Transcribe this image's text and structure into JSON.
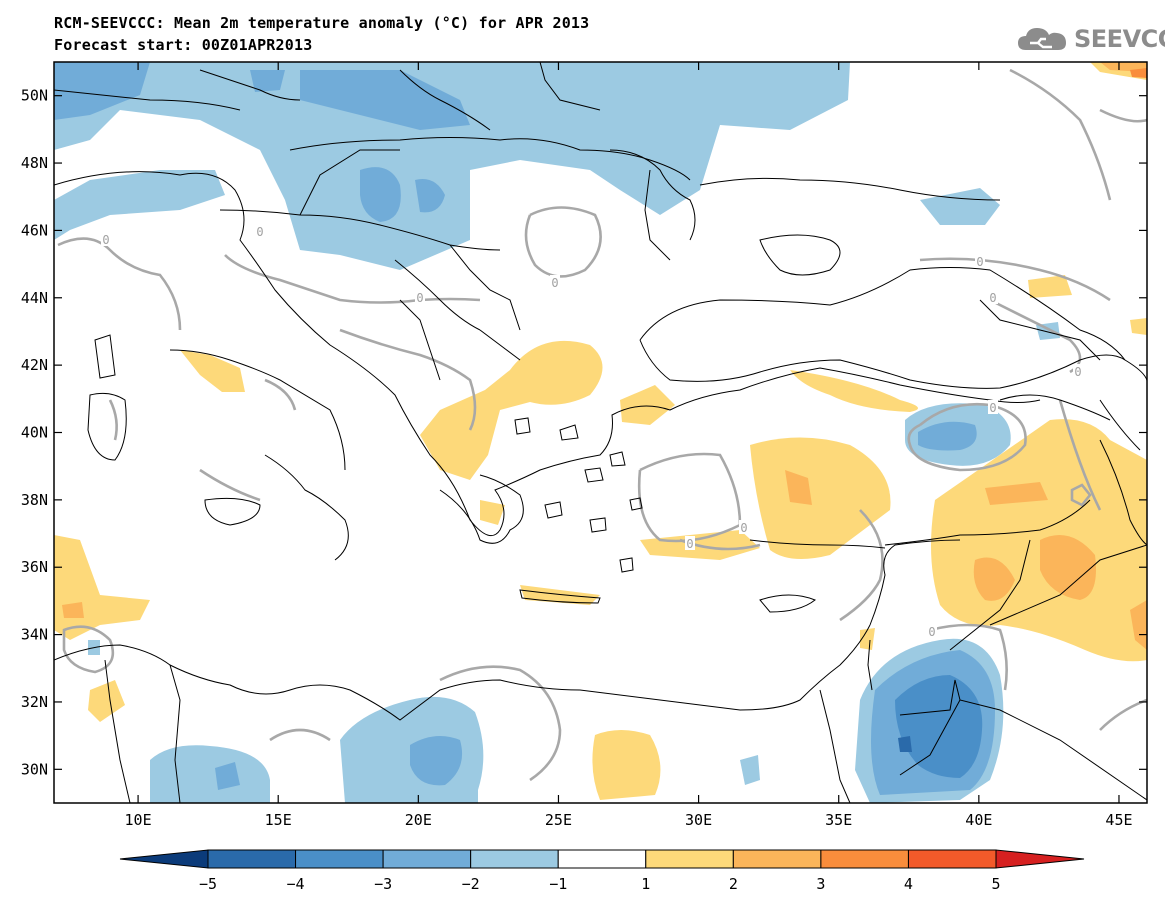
{
  "header": {
    "title_line1": "RCM-SEEVCCC: Mean 2m temperature anomaly (°C) for APR 2013",
    "title_line2": "Forecast start: 00Z01APR2013"
  },
  "logo": {
    "text": "SEEVCCC",
    "icon": "cloud-logo-icon",
    "color": "#8c8c8c"
  },
  "map": {
    "lon_range": [
      7,
      46
    ],
    "lat_range": [
      29,
      51
    ],
    "lon_ticks": [
      "10E",
      "15E",
      "20E",
      "25E",
      "30E",
      "35E",
      "40E",
      "45E"
    ],
    "lat_ticks": [
      "30N",
      "32N",
      "34N",
      "36N",
      "38N",
      "40N",
      "42N",
      "44N",
      "46N",
      "48N",
      "50N"
    ],
    "contour_label": "0"
  },
  "colorbar": {
    "labels": [
      "−5",
      "−4",
      "−3",
      "−2",
      "−1",
      "1",
      "2",
      "3",
      "4",
      "5"
    ],
    "colors": [
      "#0b3b7a",
      "#2a6aaa",
      "#4a8fc8",
      "#71acd8",
      "#9ccae2",
      "#ffffff",
      "#fdd97a",
      "#fbb55a",
      "#f98d3c",
      "#f35a2a",
      "#d62020",
      "#08306b"
    ]
  }
}
